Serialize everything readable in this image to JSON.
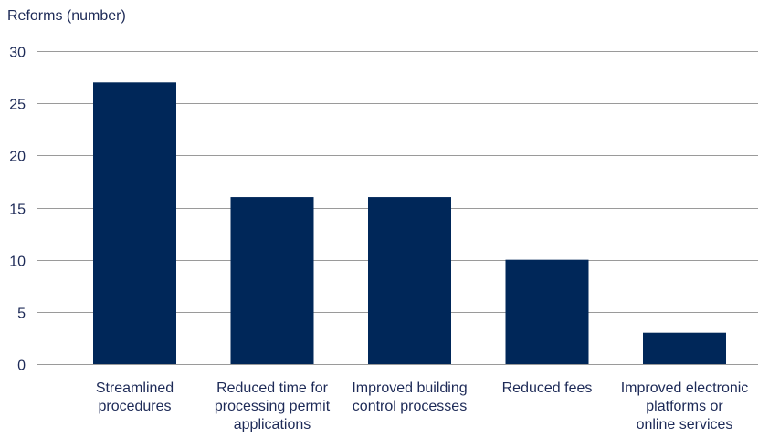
{
  "chart_data": {
    "type": "bar",
    "ylabel": "Reforms (number)",
    "categories": [
      [
        "Streamlined",
        "procedures"
      ],
      [
        "Reduced time for",
        "processing permit",
        "applications"
      ],
      [
        "Improved building",
        "control processes"
      ],
      [
        "Reduced fees"
      ],
      [
        "Improved electronic",
        "platforms or",
        "online services"
      ]
    ],
    "values": [
      27,
      16,
      16,
      10,
      3
    ],
    "ylim": [
      0,
      30
    ],
    "yticks": [
      0,
      5,
      10,
      15,
      20,
      25,
      30
    ],
    "grid": true,
    "colors": {
      "bar": "#002759",
      "grid": "#9a9a9a",
      "text": "#1d2a57"
    }
  }
}
